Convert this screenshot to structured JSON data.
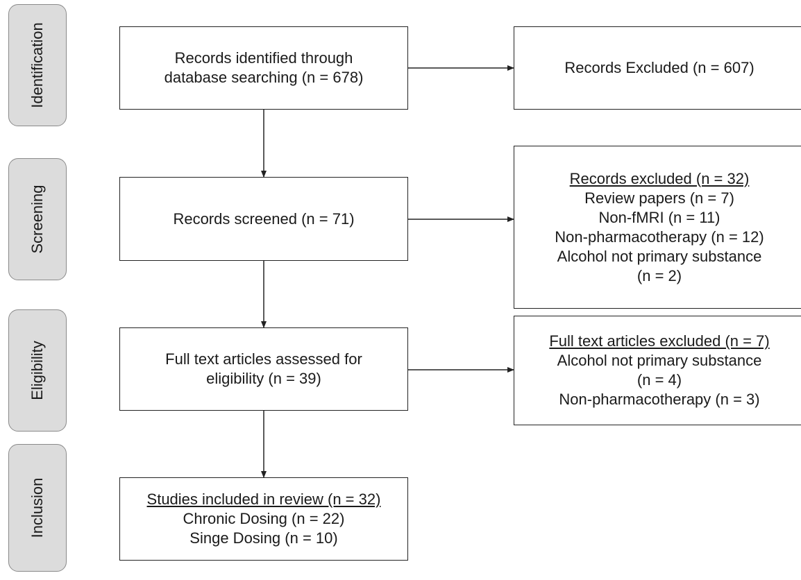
{
  "stages": [
    "Identification",
    "Screening",
    "Eligibility",
    "Inclusion"
  ],
  "identified": {
    "line1": "Records identified through",
    "line2": "database searching (n = 678)"
  },
  "excluded1": {
    "text": "Records Excluded (n = 607)"
  },
  "screened": {
    "text": "Records screened (n = 71)"
  },
  "excluded2": {
    "heading": "Records excluded (n = 32)",
    "lines": [
      "Review papers (n = 7)",
      "Non-fMRI (n = 11)",
      "Non-pharmacotherapy (n = 12)",
      "Alcohol not primary substance",
      "(n = 2)"
    ]
  },
  "fulltext": {
    "line1": "Full text articles assessed for",
    "line2": "eligibility (n = 39)"
  },
  "excluded3": {
    "heading": "Full text articles excluded (n = 7)",
    "lines": [
      "Alcohol not primary substance",
      "(n = 4)",
      "Non-pharmacotherapy (n = 3)"
    ]
  },
  "included": {
    "heading": "Studies included in review (n = 32)",
    "lines": [
      "Chronic Dosing (n = 22)",
      "Singe Dosing (n = 10)"
    ]
  }
}
